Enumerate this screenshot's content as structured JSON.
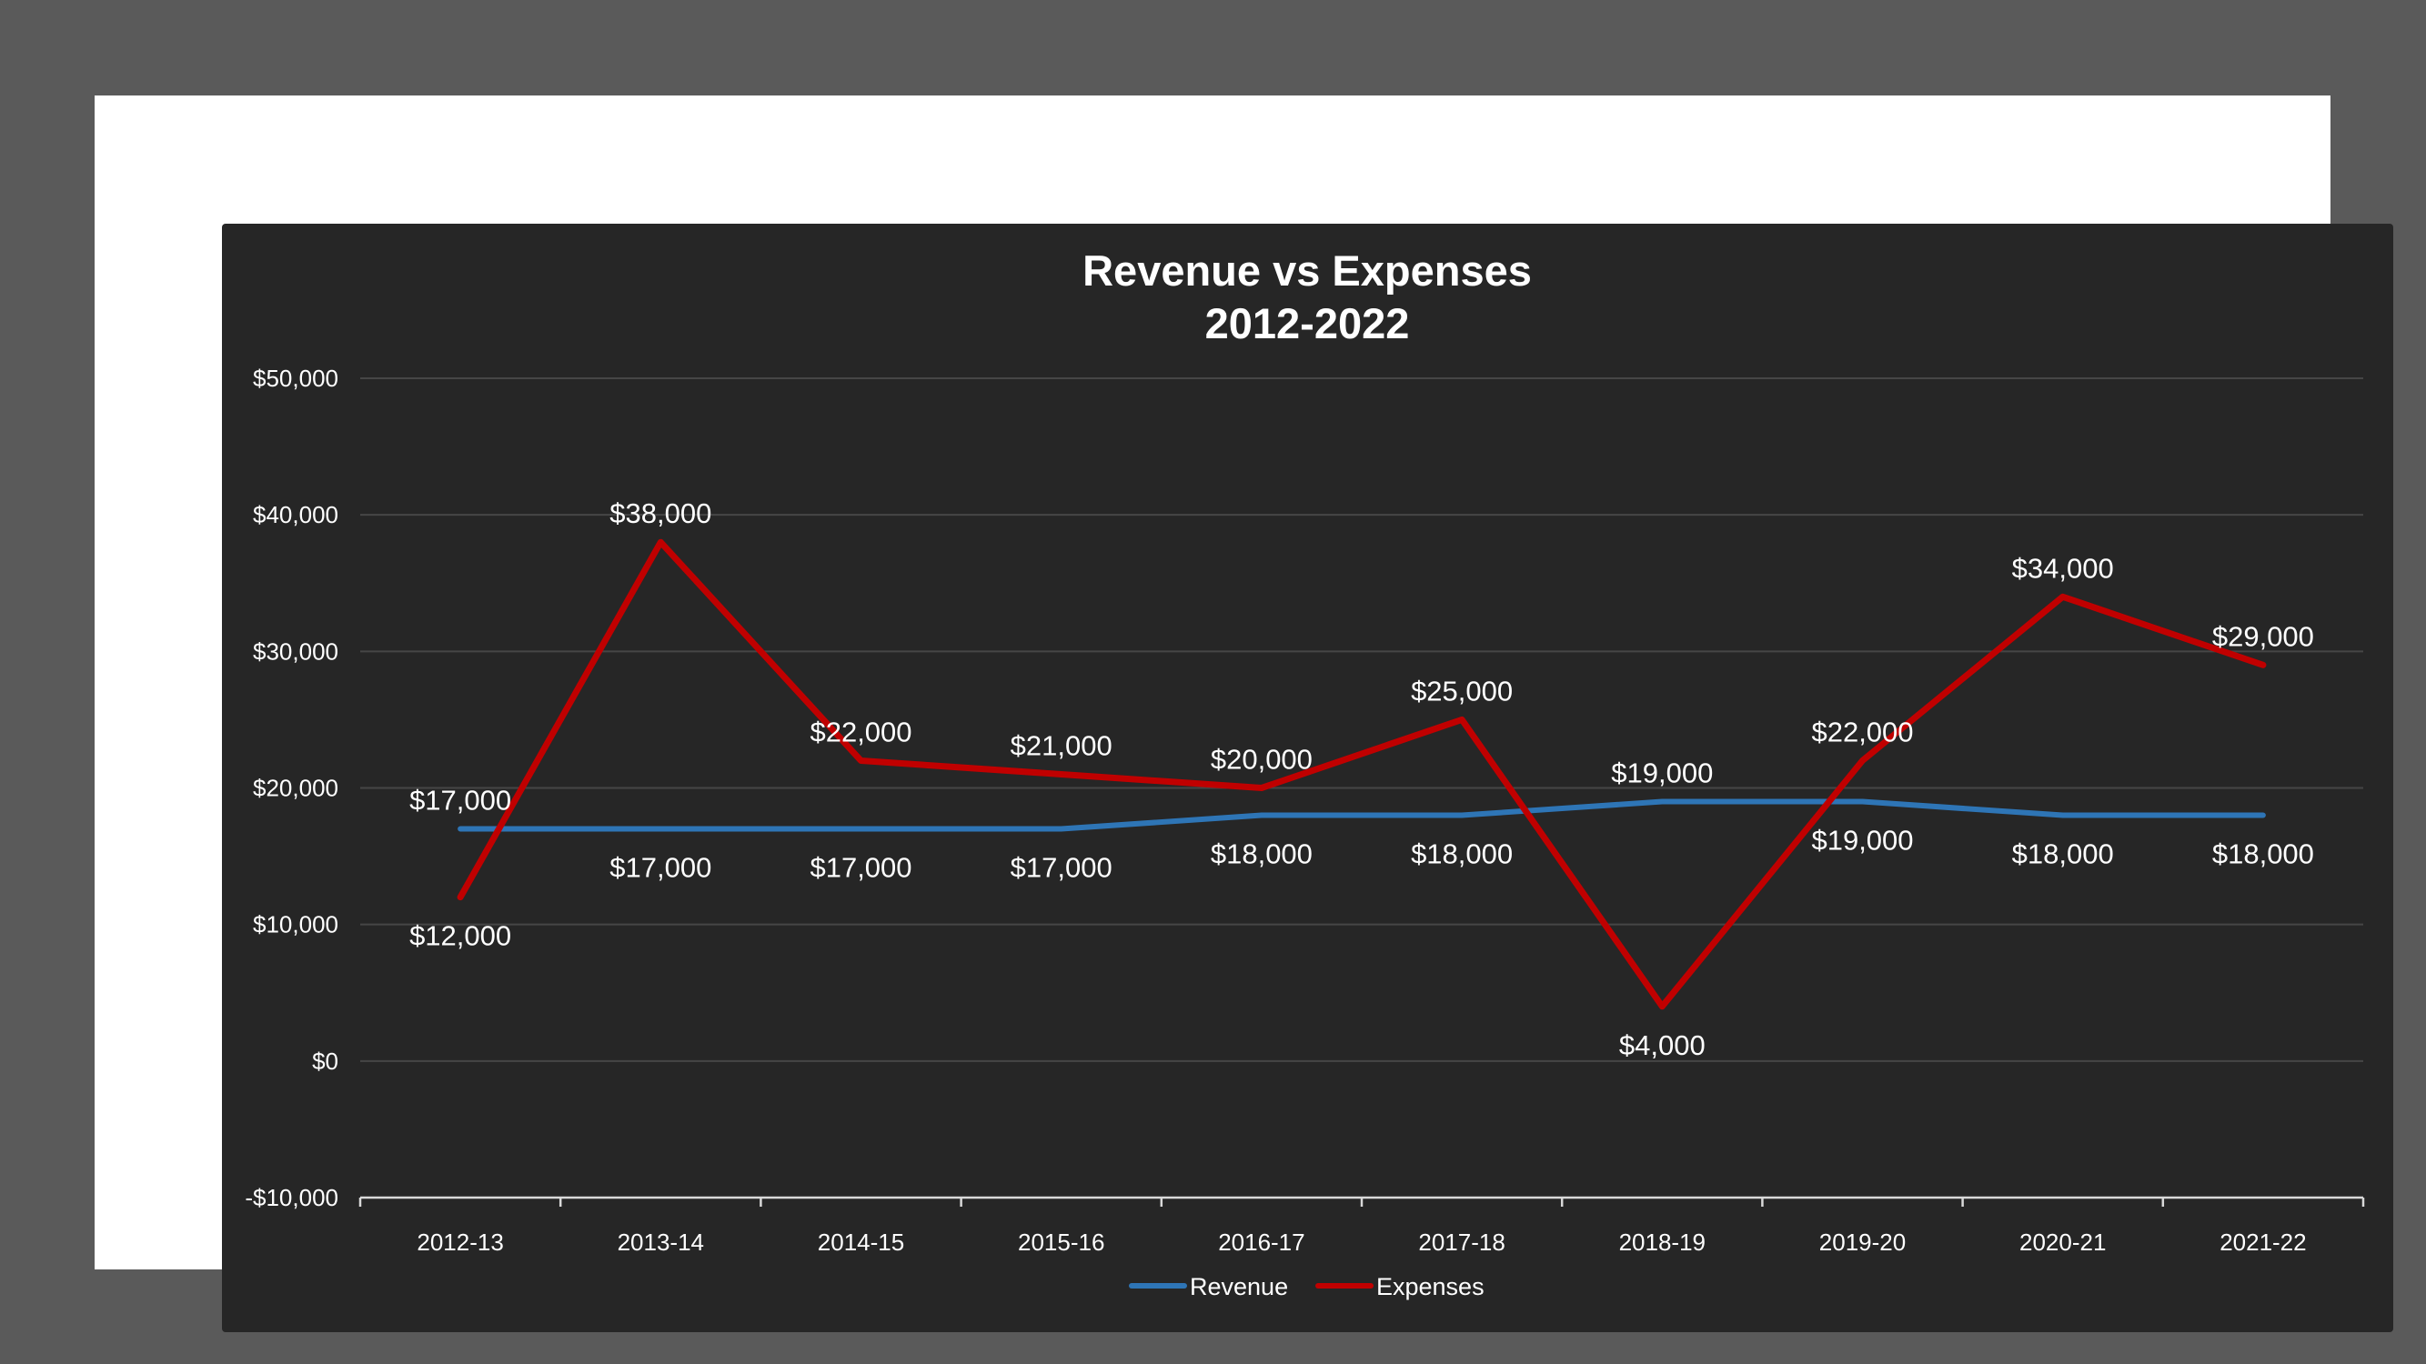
{
  "chart_data": {
    "type": "line",
    "title": "Revenue vs Expenses",
    "subtitle": "2012-2022",
    "xlabel": "",
    "ylabel": "",
    "categories": [
      "2012-13",
      "2013-14",
      "2014-15",
      "2015-16",
      "2016-17",
      "2017-18",
      "2018-19",
      "2019-20",
      "2020-21",
      "2021-22"
    ],
    "ylim": [
      -10000,
      50000
    ],
    "yticks": [
      -10000,
      0,
      10000,
      20000,
      30000,
      40000,
      50000
    ],
    "ytick_labels": [
      "-$10,000",
      "$0",
      "$10,000",
      "$20,000",
      "$30,000",
      "$40,000",
      "$50,000"
    ],
    "grid": true,
    "legend": "bottom",
    "series": [
      {
        "name": "Revenue",
        "color": "#2e75b6",
        "values": [
          17000,
          17000,
          17000,
          17000,
          18000,
          18000,
          19000,
          19000,
          18000,
          18000
        ],
        "labels": [
          "$17,000",
          "$17,000",
          "$17,000",
          "$17,000",
          "$18,000",
          "$18,000",
          "$19,000",
          "$19,000",
          "$18,000",
          "$18,000"
        ]
      },
      {
        "name": "Expenses",
        "color": "#c00000",
        "values": [
          12000,
          38000,
          22000,
          21000,
          20000,
          25000,
          4000,
          22000,
          34000,
          29000
        ],
        "labels": [
          "$12,000",
          "$38,000",
          "$22,000",
          "$21,000",
          "$20,000",
          "$25,000",
          "$4,000",
          "$22,000",
          "$34,000",
          "$29,000"
        ]
      }
    ],
    "colors": {
      "background": "#262626",
      "frame": "#ffffff",
      "outer": "#5a5a5a",
      "gridline": "#464646",
      "axis": "#d9d9d9",
      "text": "#ffffff"
    }
  }
}
